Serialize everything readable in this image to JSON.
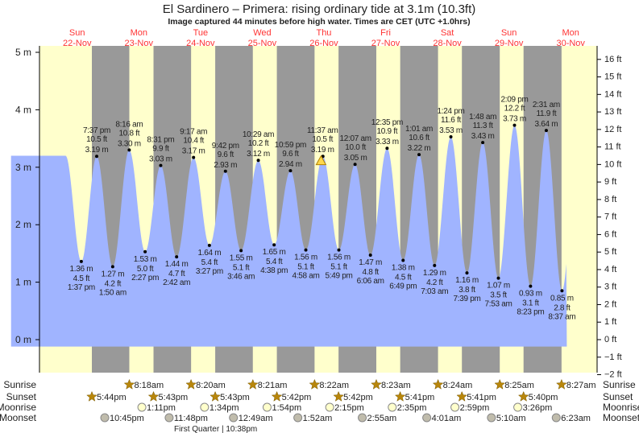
{
  "header": {
    "title": "El Sardinero – Primera: rising  ordinary tide at 3.1m (10.3ft)",
    "subtitle": "Image captured 44 minutes before high water. Times are CET (UTC +1.0hrs)"
  },
  "colors": {
    "day": "#ffffcc",
    "night": "#999999",
    "water": "#a0b4ff",
    "daylabel": "#ff3333",
    "sun": "#b8860b",
    "moonrise": "#ffffcc",
    "moonset": "#c0bcac"
  },
  "chart_data": {
    "type": "area",
    "title": "El Sardinero – Primera tide",
    "ylabel_left": "m",
    "ylabel_right": "ft",
    "ylim_m": [
      -0.61,
      5.1
    ],
    "yticks_m": [
      "0 m",
      "1 m",
      "2 m",
      "3 m",
      "4 m",
      "5 m"
    ],
    "yticks_ft": [
      "−2 ft",
      "−1 ft",
      "0 ft",
      "1 ft",
      "2 ft",
      "3 ft",
      "4 ft",
      "5 ft",
      "6 ft",
      "7 ft",
      "8 ft",
      "9 ft",
      "10 ft",
      "11 ft",
      "12 ft",
      "13 ft",
      "14 ft",
      "15 ft",
      "16 ft"
    ],
    "days": [
      {
        "name": "Sun",
        "date": "22-Nov",
        "offset": -1
      },
      {
        "name": "Mon",
        "date": "23-Nov",
        "offset": 0
      },
      {
        "name": "Tue",
        "date": "24-Nov",
        "offset": 1
      },
      {
        "name": "Wed",
        "date": "25-Nov",
        "offset": 2
      },
      {
        "name": "Thu",
        "date": "26-Nov",
        "offset": 3
      },
      {
        "name": "Fri",
        "date": "27-Nov",
        "offset": 4
      },
      {
        "name": "Sat",
        "date": "28-Nov",
        "offset": 5
      },
      {
        "name": "Sun",
        "date": "29-Nov",
        "offset": 6
      },
      {
        "name": "Mon",
        "date": "30-Nov",
        "offset": 7
      }
    ],
    "extremes": [
      {
        "day": -1,
        "time": "1:37 pm",
        "m": "1.36 m",
        "ft": "4.5 ft",
        "value": 1.36,
        "type": "low"
      },
      {
        "day": -1,
        "time": "7:37 pm",
        "m": "3.19 m",
        "ft": "10.5 ft",
        "value": 3.19,
        "type": "high"
      },
      {
        "day": 0,
        "time": "1:50 am",
        "m": "1.27 m",
        "ft": "4.2 ft",
        "value": 1.27,
        "type": "low"
      },
      {
        "day": 0,
        "time": "8:16 am",
        "m": "3.30 m",
        "ft": "10.8 ft",
        "value": 3.3,
        "type": "high"
      },
      {
        "day": 0,
        "time": "2:27 pm",
        "m": "1.53 m",
        "ft": "5.0 ft",
        "value": 1.53,
        "type": "low"
      },
      {
        "day": 0,
        "time": "8:31 pm",
        "m": "3.03 m",
        "ft": "9.9 ft",
        "value": 3.03,
        "type": "high"
      },
      {
        "day": 1,
        "time": "2:42 am",
        "m": "1.44 m",
        "ft": "4.7 ft",
        "value": 1.44,
        "type": "low"
      },
      {
        "day": 1,
        "time": "9:17 am",
        "m": "3.17 m",
        "ft": "10.4 ft",
        "value": 3.17,
        "type": "high"
      },
      {
        "day": 1,
        "time": "3:27 pm",
        "m": "1.64 m",
        "ft": "5.4 ft",
        "value": 1.64,
        "type": "low"
      },
      {
        "day": 1,
        "time": "9:42 pm",
        "m": "2.93 m",
        "ft": "9.6 ft",
        "value": 2.93,
        "type": "high"
      },
      {
        "day": 2,
        "time": "3:46 am",
        "m": "1.55 m",
        "ft": "5.1 ft",
        "value": 1.55,
        "type": "low"
      },
      {
        "day": 2,
        "time": "10:29 am",
        "m": "3.12 m",
        "ft": "10.2 ft",
        "value": 3.12,
        "type": "high"
      },
      {
        "day": 2,
        "time": "4:38 pm",
        "m": "1.65 m",
        "ft": "5.4 ft",
        "value": 1.65,
        "type": "low"
      },
      {
        "day": 2,
        "time": "10:59 pm",
        "m": "2.94 m",
        "ft": "9.6 ft",
        "value": 2.94,
        "type": "high"
      },
      {
        "day": 3,
        "time": "4:58 am",
        "m": "1.56 m",
        "ft": "5.1 ft",
        "value": 1.56,
        "type": "low"
      },
      {
        "day": 3,
        "time": "11:37 am",
        "m": "3.19 m",
        "ft": "10.5 ft",
        "value": 3.19,
        "type": "high"
      },
      {
        "day": 3,
        "time": "5:49 pm",
        "m": "1.56 m",
        "ft": "5.1 ft",
        "value": 1.56,
        "type": "low"
      },
      {
        "day": 4,
        "time": "12:07 am",
        "m": "3.05 m",
        "ft": "10.0 ft",
        "value": 3.05,
        "type": "high"
      },
      {
        "day": 4,
        "time": "6:06 am",
        "m": "1.47 m",
        "ft": "4.8 ft",
        "value": 1.47,
        "type": "low"
      },
      {
        "day": 4,
        "time": "12:35 pm",
        "m": "3.33 m",
        "ft": "10.9 ft",
        "value": 3.33,
        "type": "high"
      },
      {
        "day": 4,
        "time": "6:49 pm",
        "m": "1.38 m",
        "ft": "4.5 ft",
        "value": 1.38,
        "type": "low"
      },
      {
        "day": 5,
        "time": "1:01 am",
        "m": "3.22 m",
        "ft": "10.6 ft",
        "value": 3.22,
        "type": "high"
      },
      {
        "day": 5,
        "time": "7:03 am",
        "m": "1.29 m",
        "ft": "4.2 ft",
        "value": 1.29,
        "type": "low"
      },
      {
        "day": 5,
        "time": "1:24 pm",
        "m": "3.53 m",
        "ft": "11.6 ft",
        "value": 3.53,
        "type": "high"
      },
      {
        "day": 5,
        "time": "7:39 pm",
        "m": "1.16 m",
        "ft": "3.8 ft",
        "value": 1.16,
        "type": "low"
      },
      {
        "day": 6,
        "time": "1:48 am",
        "m": "3.43 m",
        "ft": "11.3 ft",
        "value": 3.43,
        "type": "high"
      },
      {
        "day": 6,
        "time": "7:53 am",
        "m": "1.07 m",
        "ft": "3.5 ft",
        "value": 1.07,
        "type": "low"
      },
      {
        "day": 6,
        "time": "2:09 pm",
        "m": "3.73 m",
        "ft": "12.2 ft",
        "value": 3.73,
        "type": "high"
      },
      {
        "day": 6,
        "time": "8:23 pm",
        "m": "0.93 m",
        "ft": "3.1 ft",
        "value": 0.93,
        "type": "low"
      },
      {
        "day": 7,
        "time": "2:31 am",
        "m": "3.64 m",
        "ft": "11.9 ft",
        "value": 3.64,
        "type": "high"
      },
      {
        "day": 7,
        "time": "8:37 am",
        "m": "0.85 m",
        "ft": "2.8 ft",
        "value": 0.85,
        "type": "low"
      }
    ],
    "current": {
      "day": 3,
      "time": "10:53 am",
      "value": 3.1
    }
  },
  "almanac": {
    "labels": {
      "sunrise": "Sunrise",
      "sunset": "Sunset",
      "moonrise": "Moonrise",
      "moonset": "Moonset"
    },
    "sunrise": [
      {
        "day": 0,
        "time": "8:18am"
      },
      {
        "day": 1,
        "time": "8:20am"
      },
      {
        "day": 2,
        "time": "8:21am"
      },
      {
        "day": 3,
        "time": "8:22am"
      },
      {
        "day": 4,
        "time": "8:23am"
      },
      {
        "day": 5,
        "time": "8:24am"
      },
      {
        "day": 6,
        "time": "8:25am"
      },
      {
        "day": 7,
        "time": "8:27am"
      }
    ],
    "sunset": [
      {
        "day": -1,
        "time": "5:44pm"
      },
      {
        "day": 0,
        "time": "5:43pm"
      },
      {
        "day": 1,
        "time": "5:43pm"
      },
      {
        "day": 2,
        "time": "5:42pm"
      },
      {
        "day": 3,
        "time": "5:42pm"
      },
      {
        "day": 4,
        "time": "5:41pm"
      },
      {
        "day": 5,
        "time": "5:41pm"
      },
      {
        "day": 6,
        "time": "5:40pm"
      }
    ],
    "moonrise": [
      {
        "day": 0,
        "time": "1:11pm"
      },
      {
        "day": 1,
        "time": "1:34pm"
      },
      {
        "day": 2,
        "time": "1:54pm"
      },
      {
        "day": 3,
        "time": "2:15pm"
      },
      {
        "day": 4,
        "time": "2:35pm"
      },
      {
        "day": 5,
        "time": "2:59pm"
      },
      {
        "day": 6,
        "time": "3:26pm"
      }
    ],
    "moonset": [
      {
        "day": -1,
        "time": "10:45pm"
      },
      {
        "day": 0,
        "time": "11:48pm"
      },
      {
        "day": 2,
        "time": "12:49am"
      },
      {
        "day": 3,
        "time": "1:52am"
      },
      {
        "day": 4,
        "time": "2:55am"
      },
      {
        "day": 5,
        "time": "4:01am"
      },
      {
        "day": 6,
        "time": "5:10am"
      },
      {
        "day": 7,
        "time": "6:23am"
      }
    ],
    "moon_phase": {
      "day": 1,
      "label": "First Quarter | 10:38pm"
    }
  }
}
